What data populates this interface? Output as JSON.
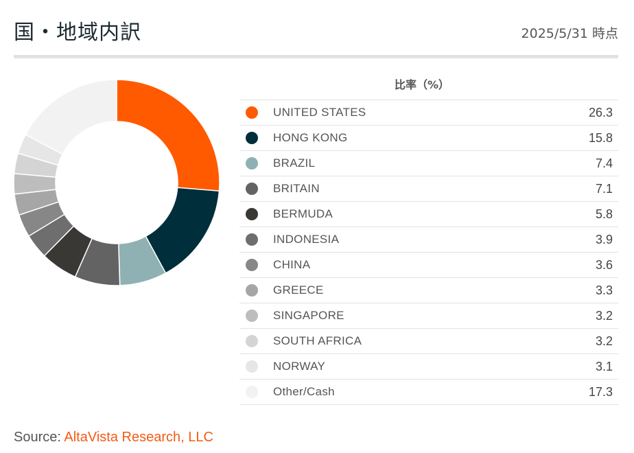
{
  "header": {
    "title": "国・地域内訳",
    "date": "2025/5/31 時点"
  },
  "legend": {
    "column_header": "比率（%）"
  },
  "source": {
    "label": "Source: ",
    "link_text": "AltaVista Research, LLC",
    "link_color": "#f55a14"
  },
  "chart_data": {
    "type": "pie",
    "donut": true,
    "title": "",
    "unit": "%",
    "categories": [
      "UNITED STATES",
      "HONG KONG",
      "BRAZIL",
      "BRITAIN",
      "BERMUDA",
      "INDONESIA",
      "CHINA",
      "GREECE",
      "SINGAPORE",
      "SOUTH AFRICA",
      "NORWAY",
      "Other/Cash"
    ],
    "values": [
      26.3,
      15.8,
      7.4,
      7.1,
      5.8,
      3.9,
      3.6,
      3.3,
      3.2,
      3.2,
      3.1,
      17.3
    ],
    "value_labels": [
      "26.3",
      "15.8",
      "7.4",
      "7.1",
      "5.8",
      "3.9",
      "3.6",
      "3.3",
      "3.2",
      "3.2",
      "3.1",
      "17.3"
    ],
    "colors": [
      "#ff5a00",
      "#002e3b",
      "#8fb1b3",
      "#636363",
      "#3a3835",
      "#6e6e6e",
      "#878787",
      "#a6a6a6",
      "#bdbdbd",
      "#d4d4d4",
      "#e6e6e6",
      "#f2f2f2"
    ],
    "legend_position": "right"
  }
}
